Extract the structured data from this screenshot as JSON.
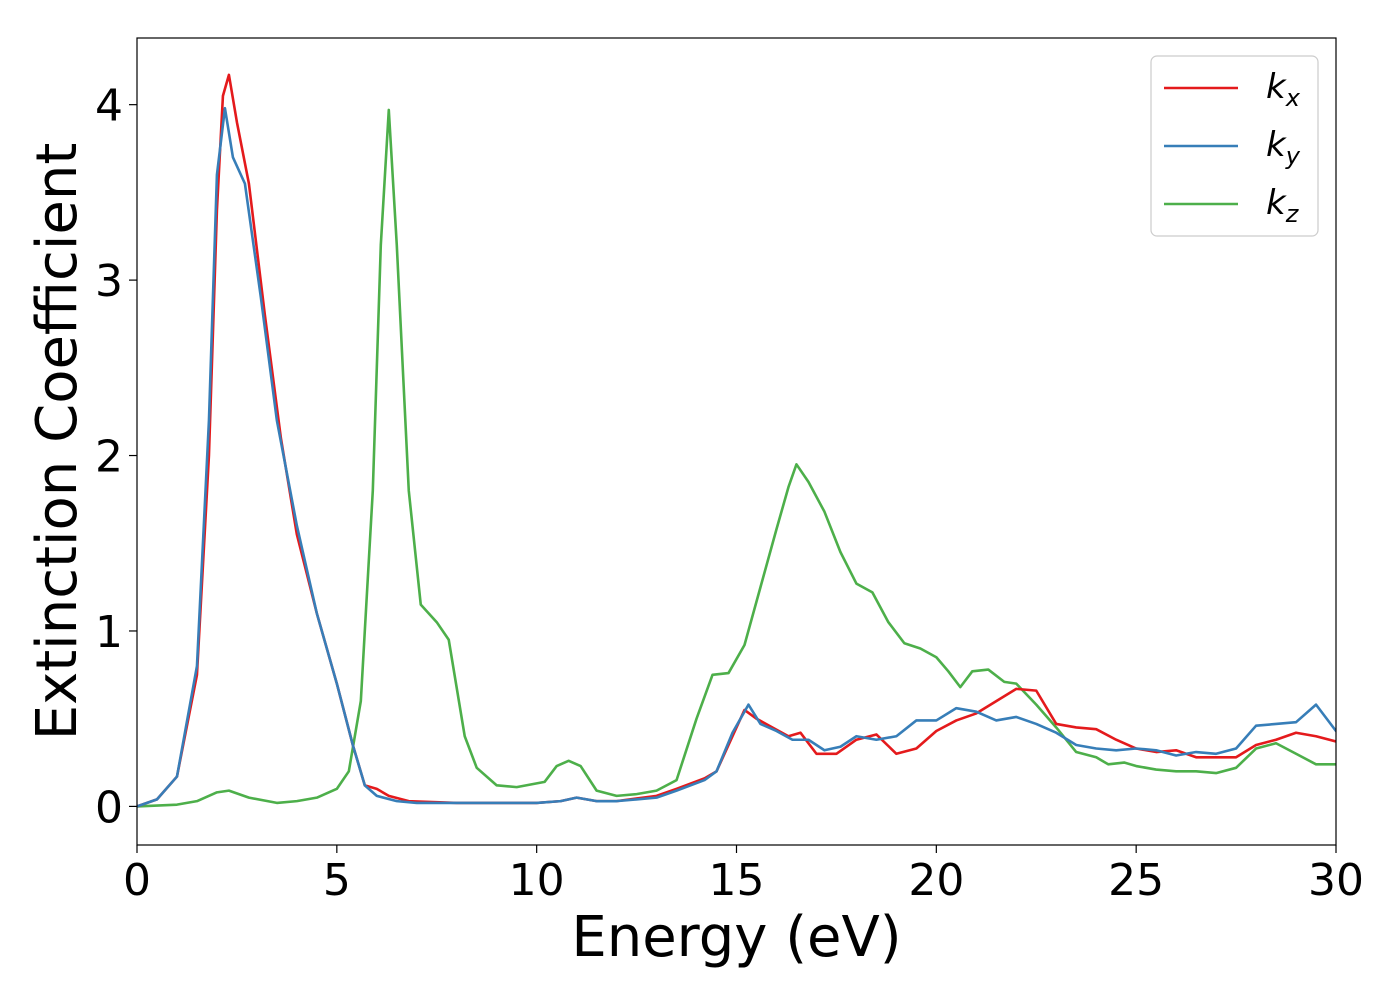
{
  "chart_data": {
    "type": "line",
    "xlabel": "Energy (eV)",
    "ylabel": "Extinction Coefficient",
    "xlim": [
      0,
      30
    ],
    "ylim": [
      -0.22,
      4.38
    ],
    "x_ticks": [
      "0",
      "5",
      "10",
      "15",
      "20",
      "25",
      "30"
    ],
    "y_ticks": [
      "0",
      "1",
      "2",
      "3",
      "4"
    ],
    "grid": false,
    "legend_position": "top-right",
    "series": [
      {
        "name": "k",
        "subscript": "x",
        "color": "#e41a1c",
        "points": [
          [
            0,
            0
          ],
          [
            0.5,
            0.04
          ],
          [
            1.0,
            0.17
          ],
          [
            1.5,
            0.75
          ],
          [
            1.8,
            2.0
          ],
          [
            2.0,
            3.4
          ],
          [
            2.15,
            4.05
          ],
          [
            2.3,
            4.17
          ],
          [
            2.5,
            3.9
          ],
          [
            2.8,
            3.55
          ],
          [
            3.2,
            2.8
          ],
          [
            3.6,
            2.1
          ],
          [
            4.0,
            1.55
          ],
          [
            4.5,
            1.1
          ],
          [
            5.0,
            0.7
          ],
          [
            5.4,
            0.35
          ],
          [
            5.7,
            0.12
          ],
          [
            6.0,
            0.1
          ],
          [
            6.3,
            0.06
          ],
          [
            6.8,
            0.03
          ],
          [
            8,
            0.02
          ],
          [
            9,
            0.02
          ],
          [
            10,
            0.02
          ],
          [
            10.6,
            0.03
          ],
          [
            11.0,
            0.05
          ],
          [
            11.5,
            0.03
          ],
          [
            12.0,
            0.03
          ],
          [
            13.0,
            0.06
          ],
          [
            13.5,
            0.1
          ],
          [
            14.2,
            0.16
          ],
          [
            14.5,
            0.2
          ],
          [
            14.9,
            0.4
          ],
          [
            15.2,
            0.55
          ],
          [
            15.5,
            0.5
          ],
          [
            15.9,
            0.45
          ],
          [
            16.3,
            0.4
          ],
          [
            16.6,
            0.42
          ],
          [
            17.0,
            0.3
          ],
          [
            17.5,
            0.3
          ],
          [
            18.0,
            0.38
          ],
          [
            18.5,
            0.41
          ],
          [
            19.0,
            0.3
          ],
          [
            19.5,
            0.33
          ],
          [
            20.0,
            0.43
          ],
          [
            20.5,
            0.49
          ],
          [
            21.0,
            0.53
          ],
          [
            21.5,
            0.6
          ],
          [
            22.0,
            0.67
          ],
          [
            22.5,
            0.66
          ],
          [
            23.0,
            0.47
          ],
          [
            23.5,
            0.45
          ],
          [
            24.0,
            0.44
          ],
          [
            24.5,
            0.38
          ],
          [
            25.0,
            0.33
          ],
          [
            25.5,
            0.31
          ],
          [
            26.0,
            0.32
          ],
          [
            26.5,
            0.28
          ],
          [
            27.0,
            0.28
          ],
          [
            27.5,
            0.28
          ],
          [
            28.0,
            0.35
          ],
          [
            28.5,
            0.38
          ],
          [
            29.0,
            0.42
          ],
          [
            29.5,
            0.4
          ],
          [
            30.0,
            0.37
          ]
        ]
      },
      {
        "name": "k",
        "subscript": "y",
        "color": "#377eb8",
        "points": [
          [
            0,
            0
          ],
          [
            0.5,
            0.04
          ],
          [
            1.0,
            0.17
          ],
          [
            1.5,
            0.8
          ],
          [
            1.8,
            2.2
          ],
          [
            2.0,
            3.6
          ],
          [
            2.2,
            3.98
          ],
          [
            2.4,
            3.7
          ],
          [
            2.7,
            3.55
          ],
          [
            3.1,
            2.9
          ],
          [
            3.5,
            2.2
          ],
          [
            4.0,
            1.6
          ],
          [
            4.5,
            1.1
          ],
          [
            5.0,
            0.7
          ],
          [
            5.4,
            0.35
          ],
          [
            5.7,
            0.12
          ],
          [
            6.0,
            0.06
          ],
          [
            6.5,
            0.03
          ],
          [
            7,
            0.02
          ],
          [
            8,
            0.02
          ],
          [
            9,
            0.02
          ],
          [
            10,
            0.02
          ],
          [
            10.6,
            0.03
          ],
          [
            11.0,
            0.05
          ],
          [
            11.5,
            0.03
          ],
          [
            12.0,
            0.03
          ],
          [
            13.0,
            0.05
          ],
          [
            13.5,
            0.09
          ],
          [
            14.2,
            0.15
          ],
          [
            14.5,
            0.2
          ],
          [
            14.9,
            0.42
          ],
          [
            15.3,
            0.58
          ],
          [
            15.6,
            0.47
          ],
          [
            16.0,
            0.43
          ],
          [
            16.4,
            0.38
          ],
          [
            16.8,
            0.38
          ],
          [
            17.2,
            0.32
          ],
          [
            17.6,
            0.34
          ],
          [
            18.0,
            0.4
          ],
          [
            18.5,
            0.38
          ],
          [
            19.0,
            0.4
          ],
          [
            19.5,
            0.49
          ],
          [
            20.0,
            0.49
          ],
          [
            20.5,
            0.56
          ],
          [
            21.0,
            0.54
          ],
          [
            21.5,
            0.49
          ],
          [
            22.0,
            0.51
          ],
          [
            22.5,
            0.47
          ],
          [
            23.0,
            0.42
          ],
          [
            23.5,
            0.35
          ],
          [
            24.0,
            0.33
          ],
          [
            24.5,
            0.32
          ],
          [
            25.0,
            0.33
          ],
          [
            25.5,
            0.32
          ],
          [
            26.0,
            0.29
          ],
          [
            26.5,
            0.31
          ],
          [
            27.0,
            0.3
          ],
          [
            27.5,
            0.33
          ],
          [
            28.0,
            0.46
          ],
          [
            28.5,
            0.47
          ],
          [
            29.0,
            0.48
          ],
          [
            29.5,
            0.58
          ],
          [
            30.0,
            0.43
          ]
        ]
      },
      {
        "name": "k",
        "subscript": "z",
        "color": "#4daf4a",
        "points": [
          [
            0,
            0
          ],
          [
            1.0,
            0.01
          ],
          [
            1.5,
            0.03
          ],
          [
            2.0,
            0.08
          ],
          [
            2.3,
            0.09
          ],
          [
            2.8,
            0.05
          ],
          [
            3.5,
            0.02
          ],
          [
            4.0,
            0.03
          ],
          [
            4.5,
            0.05
          ],
          [
            5.0,
            0.1
          ],
          [
            5.3,
            0.2
          ],
          [
            5.6,
            0.6
          ],
          [
            5.9,
            1.8
          ],
          [
            6.1,
            3.2
          ],
          [
            6.3,
            3.97
          ],
          [
            6.5,
            3.2
          ],
          [
            6.8,
            1.8
          ],
          [
            7.1,
            1.15
          ],
          [
            7.5,
            1.05
          ],
          [
            7.8,
            0.95
          ],
          [
            8.2,
            0.4
          ],
          [
            8.5,
            0.22
          ],
          [
            9.0,
            0.12
          ],
          [
            9.5,
            0.11
          ],
          [
            10.2,
            0.14
          ],
          [
            10.5,
            0.23
          ],
          [
            10.8,
            0.26
          ],
          [
            11.1,
            0.23
          ],
          [
            11.5,
            0.09
          ],
          [
            12.0,
            0.06
          ],
          [
            12.5,
            0.07
          ],
          [
            13.0,
            0.09
          ],
          [
            13.5,
            0.15
          ],
          [
            14.0,
            0.5
          ],
          [
            14.4,
            0.75
          ],
          [
            14.8,
            0.76
          ],
          [
            15.2,
            0.92
          ],
          [
            15.6,
            1.25
          ],
          [
            16.0,
            1.58
          ],
          [
            16.3,
            1.82
          ],
          [
            16.5,
            1.95
          ],
          [
            16.8,
            1.85
          ],
          [
            17.2,
            1.68
          ],
          [
            17.6,
            1.45
          ],
          [
            18.0,
            1.27
          ],
          [
            18.4,
            1.22
          ],
          [
            18.8,
            1.05
          ],
          [
            19.2,
            0.93
          ],
          [
            19.6,
            0.9
          ],
          [
            20.0,
            0.85
          ],
          [
            20.3,
            0.77
          ],
          [
            20.6,
            0.68
          ],
          [
            20.9,
            0.77
          ],
          [
            21.3,
            0.78
          ],
          [
            21.7,
            0.71
          ],
          [
            22.0,
            0.7
          ],
          [
            22.5,
            0.58
          ],
          [
            23.0,
            0.45
          ],
          [
            23.5,
            0.31
          ],
          [
            24.0,
            0.28
          ],
          [
            24.3,
            0.24
          ],
          [
            24.7,
            0.25
          ],
          [
            25.0,
            0.23
          ],
          [
            25.5,
            0.21
          ],
          [
            26.0,
            0.2
          ],
          [
            26.5,
            0.2
          ],
          [
            27.0,
            0.19
          ],
          [
            27.5,
            0.22
          ],
          [
            28.0,
            0.33
          ],
          [
            28.5,
            0.36
          ],
          [
            29.0,
            0.3
          ],
          [
            29.5,
            0.24
          ],
          [
            30.0,
            0.24
          ]
        ]
      }
    ]
  }
}
